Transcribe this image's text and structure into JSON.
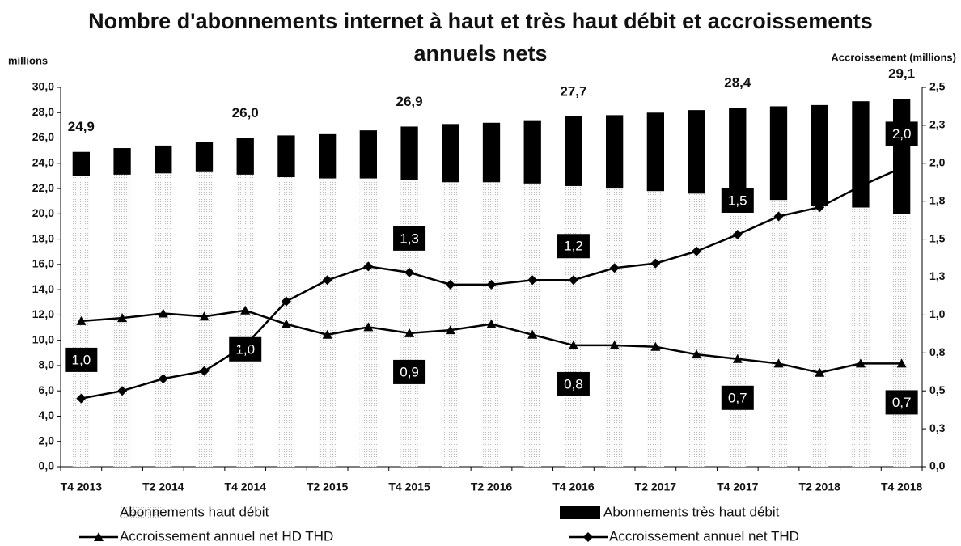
{
  "chart_data": {
    "type": "bar",
    "title": "Nombre d'abonnements internet à haut et très haut débit et accroissements annuels nets",
    "y_label": "millions",
    "y2_label": "Accroissement (millions)",
    "categories": [
      "T4 2013",
      null,
      "T2 2014",
      null,
      "T4 2014",
      null,
      "T2 2015",
      null,
      "T4 2015",
      null,
      "T2 2016",
      null,
      "T4 2016",
      null,
      "T2 2017",
      null,
      "T4 2017",
      null,
      "T2 2018",
      null,
      "T4 2018"
    ],
    "ylim": [
      0,
      30
    ],
    "yticks": [
      {
        "value": 0,
        "label": "0,0"
      },
      {
        "value": 2,
        "label": "2,0"
      },
      {
        "value": 4,
        "label": "4,0"
      },
      {
        "value": 6,
        "label": "6,0"
      },
      {
        "value": 8,
        "label": "8,0"
      },
      {
        "value": 10,
        "label": "10,0"
      },
      {
        "value": 12,
        "label": "12,0"
      },
      {
        "value": 14,
        "label": "14,0"
      },
      {
        "value": 16,
        "label": "16,0"
      },
      {
        "value": 18,
        "label": "18,0"
      },
      {
        "value": 20,
        "label": "20,0"
      },
      {
        "value": 22,
        "label": "22,0"
      },
      {
        "value": 24,
        "label": "24,0"
      },
      {
        "value": 26,
        "label": "26,0"
      },
      {
        "value": 28,
        "label": "28,0"
      },
      {
        "value": 30,
        "label": "30,0"
      }
    ],
    "y2lim": [
      0,
      2.5
    ],
    "y2ticks": [
      {
        "value": 0,
        "label": "0,0"
      },
      {
        "value": 0.25,
        "label": "0,3"
      },
      {
        "value": 0.5,
        "label": "0,5"
      },
      {
        "value": 0.75,
        "label": "0,8"
      },
      {
        "value": 1.0,
        "label": "1,0"
      },
      {
        "value": 1.25,
        "label": "1,3"
      },
      {
        "value": 1.5,
        "label": "1,5"
      },
      {
        "value": 1.75,
        "label": "1,8"
      },
      {
        "value": 2.0,
        "label": "2,0"
      },
      {
        "value": 2.25,
        "label": "2,3"
      },
      {
        "value": 2.5,
        "label": "2,5"
      }
    ],
    "stacked": true,
    "total_labels": [
      "24,9",
      null,
      null,
      null,
      "26,0",
      null,
      null,
      null,
      "26,9",
      null,
      null,
      null,
      "27,7",
      null,
      null,
      null,
      "28,4",
      null,
      null,
      null,
      "29,1"
    ],
    "series": [
      {
        "name": "Abonnements haut débit",
        "type": "bar",
        "color": "#f2f2f2",
        "values": [
          23.0,
          23.1,
          23.2,
          23.3,
          23.1,
          22.9,
          22.8,
          22.8,
          22.7,
          22.5,
          22.5,
          22.4,
          22.2,
          22.0,
          21.8,
          21.6,
          21.5,
          21.1,
          20.6,
          20.5,
          20.0
        ]
      },
      {
        "name": "Abonnements très haut débit",
        "type": "bar",
        "color": "#000000",
        "values": [
          1.9,
          2.1,
          2.2,
          2.4,
          2.9,
          3.3,
          3.5,
          3.8,
          4.2,
          4.6,
          4.7,
          5.0,
          5.5,
          5.8,
          6.2,
          6.6,
          6.9,
          7.4,
          8.0,
          8.4,
          9.1
        ]
      },
      {
        "name": "Accroissement annuel net HD THD",
        "type": "line",
        "axis": "y2",
        "color": "#000000",
        "marker": "triangle",
        "values": [
          0.96,
          0.98,
          1.01,
          0.99,
          1.03,
          0.94,
          0.87,
          0.92,
          0.88,
          0.9,
          0.94,
          0.87,
          0.8,
          0.8,
          0.79,
          0.74,
          0.71,
          0.68,
          0.62,
          0.68,
          0.68
        ],
        "value_labels": [
          "1,0",
          null,
          null,
          null,
          "1,0",
          null,
          null,
          null,
          "0,9",
          null,
          null,
          null,
          "0,8",
          null,
          null,
          null,
          "0,7",
          null,
          null,
          null,
          "0,7"
        ]
      },
      {
        "name": "Accroissement annuel net THD",
        "type": "line",
        "axis": "y2",
        "color": "#000000",
        "marker": "diamond",
        "values": [
          0.45,
          0.5,
          0.58,
          0.63,
          0.8,
          1.09,
          1.23,
          1.32,
          1.28,
          1.2,
          1.2,
          1.23,
          1.23,
          1.31,
          1.34,
          1.42,
          1.53,
          1.65,
          1.71,
          1.85,
          1.97
        ],
        "value_labels": [
          null,
          null,
          null,
          null,
          null,
          null,
          null,
          null,
          "1,3",
          null,
          null,
          null,
          "1,2",
          null,
          null,
          null,
          "1,5",
          null,
          null,
          null,
          "2,0"
        ]
      }
    ]
  }
}
